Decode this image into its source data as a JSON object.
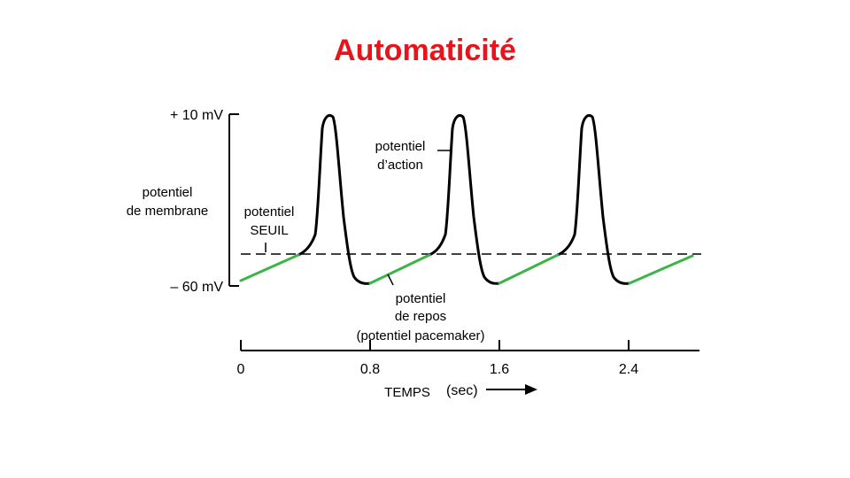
{
  "title": "Automaticité",
  "y_axis": {
    "label_line1": "potentiel",
    "label_line2": "de membrane",
    "top_label": "+ 10 mV",
    "bottom_label": "– 60 mV"
  },
  "x_axis": {
    "ticks": [
      "0",
      "0.8",
      "1.6",
      "2.4"
    ],
    "label": "TEMPS",
    "unit": "(sec)"
  },
  "annotations": {
    "threshold_line1": "potentiel",
    "threshold_line2": "SEUIL",
    "action_line1": "potentiel",
    "action_line2": "d’action",
    "rest_line1": "potentiel",
    "rest_line2": "de repos",
    "rest_line3": "(potentiel pacemaker)"
  },
  "colors": {
    "title": "#e8141c",
    "pacemaker_phase": "#3cb44a",
    "action_potential": "#000000"
  }
}
